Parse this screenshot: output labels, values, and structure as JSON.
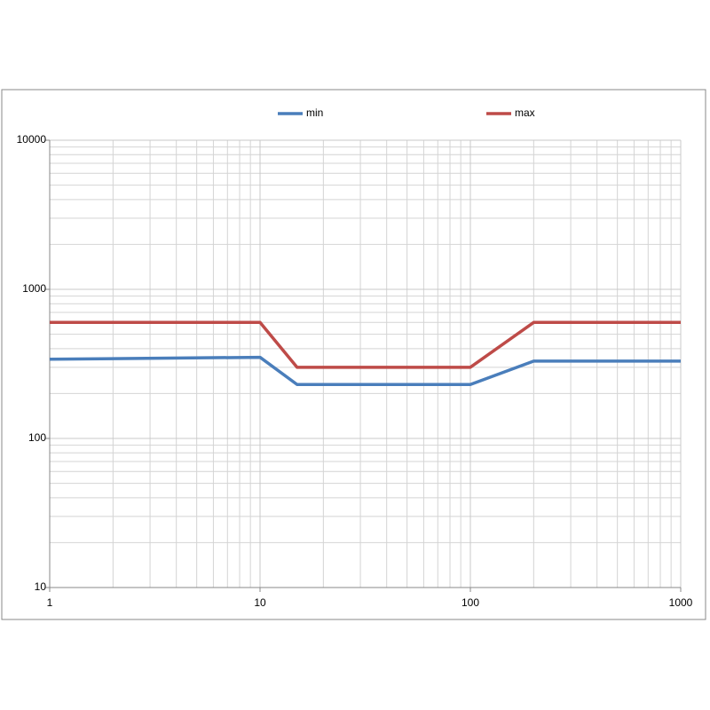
{
  "chart_data": {
    "type": "line",
    "x": [
      1,
      10,
      15,
      100,
      200,
      1000
    ],
    "series": [
      {
        "name": "min",
        "color": "#4a7ebb",
        "values": [
          340,
          350,
          230,
          230,
          330,
          330
        ]
      },
      {
        "name": "max",
        "color": "#be4b48",
        "values": [
          600,
          600,
          300,
          300,
          600,
          600
        ]
      }
    ],
    "xlim": [
      1,
      1000
    ],
    "ylim": [
      10,
      10000
    ],
    "xticks": [
      1,
      10,
      100,
      1000
    ],
    "yticks": [
      10,
      100,
      1000,
      10000
    ],
    "xscale": "log",
    "yscale": "log",
    "grid": true,
    "legend": "top"
  }
}
